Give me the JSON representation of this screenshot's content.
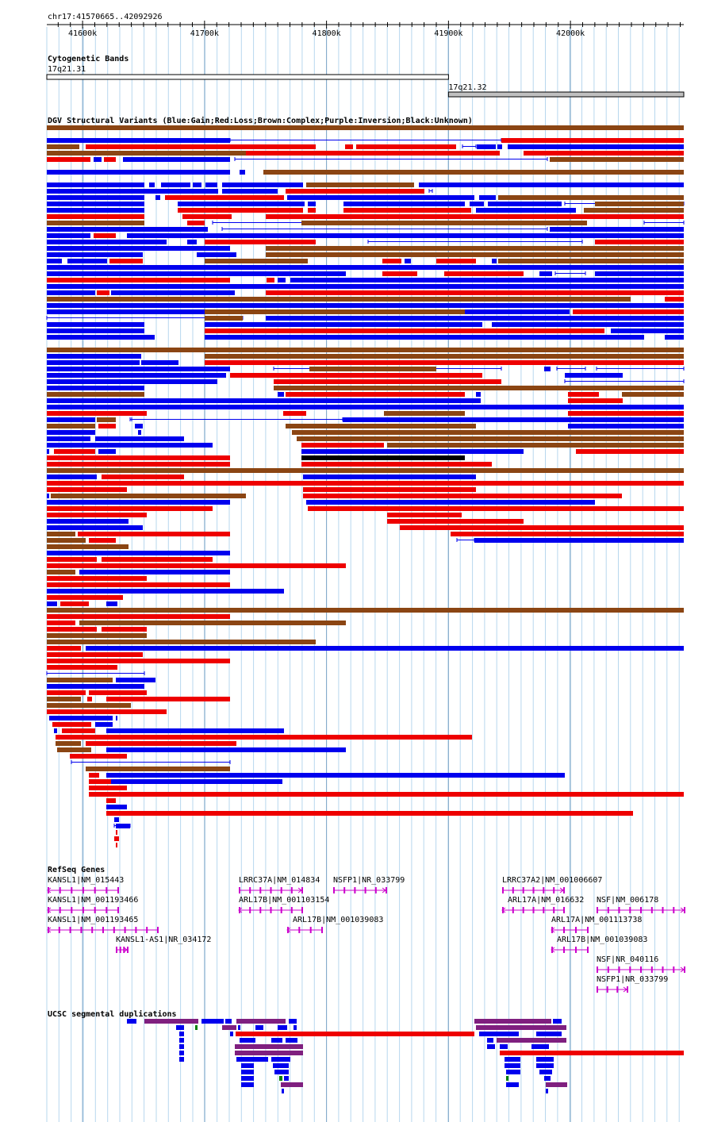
{
  "ruler": {
    "position_label": "chr17:41570665..42092926",
    "start": 41570665,
    "end": 42092926,
    "ticks": [
      {
        "value": 41600000,
        "label": "41600k"
      },
      {
        "value": 41700000,
        "label": "41700k"
      },
      {
        "value": 41800000,
        "label": "41800k"
      },
      {
        "value": 41900000,
        "label": "41900k"
      },
      {
        "value": 42000000,
        "label": "42000k"
      }
    ]
  },
  "colors": {
    "gain": "#0000ee",
    "loss": "#ee0000",
    "complex": "#8b4513",
    "unknown": "#000000",
    "inversion": "#800080",
    "gene": "#cc00cc",
    "segdup_purple": "#7f1f7f",
    "grid": "#b7d7ee"
  },
  "tracks": {
    "cytoband": {
      "title": "Cytogenetic Bands",
      "bands": [
        {
          "name": "17q21.31",
          "start": 41570665,
          "end": 41900000
        },
        {
          "name": "17q21.32",
          "start": 41900000,
          "end": 42092926
        }
      ]
    },
    "dgv": {
      "title": "DGV Structural Variants (Blue:Gain;Red:Loss;Brown:Complex;Purple:Inversion;Black:Unknown)"
    },
    "refseq": {
      "title": "RefSeq Genes",
      "genes": [
        {
          "name": "KANSL1|NM_015443",
          "start": 41570665,
          "end": 41630000,
          "strand": "-"
        },
        {
          "name": "KANSL1|NM_001193466",
          "start": 41570665,
          "end": 41630000,
          "strand": "-"
        },
        {
          "name": "KANSL1|NM_001193465",
          "start": 41570665,
          "end": 41660000,
          "strand": "-"
        },
        {
          "name": "KANSL1-AS1|NR_034172",
          "start": 41627000,
          "end": 41635000,
          "strand": "+"
        },
        {
          "name": "LRRC37A|NM_014834",
          "start": 41727000,
          "end": 41780000,
          "strand": "+"
        },
        {
          "name": "ARL17B|NM_001103154",
          "start": 41727000,
          "end": 41780000,
          "strand": "-"
        },
        {
          "name": "ARL17B|NM_001039083",
          "start": 41768000,
          "end": 41797000,
          "strand": "-"
        },
        {
          "name": "NSFP1|NR_033799",
          "start": 41808000,
          "end": 41835000,
          "strand": "+"
        },
        {
          "name": "LRRC37A2|NM_001006607",
          "start": 41943000,
          "end": 41997000,
          "strand": "+"
        },
        {
          "name": "ARL17A|NM_016632",
          "start": 41943000,
          "end": 41997000,
          "strand": "-"
        },
        {
          "name": "NSF|NM_006178",
          "start": 42020000,
          "end": 42092926,
          "strand": "+"
        },
        {
          "name": "ARL17A|NM_001113738",
          "start": 41984000,
          "end": 42011000,
          "strand": "-"
        },
        {
          "name": "ARL17B|NM_001039083",
          "start": 41988000,
          "end": 42017000,
          "strand": "-"
        },
        {
          "name": "NSF|NR_040116",
          "start": 42020000,
          "end": 42092926,
          "strand": "+"
        },
        {
          "name": "NSFP1|NR_033799",
          "start": 42020000,
          "end": 42047000,
          "strand": "+"
        }
      ]
    },
    "segdup": {
      "title": "UCSC segmental duplications"
    }
  }
}
